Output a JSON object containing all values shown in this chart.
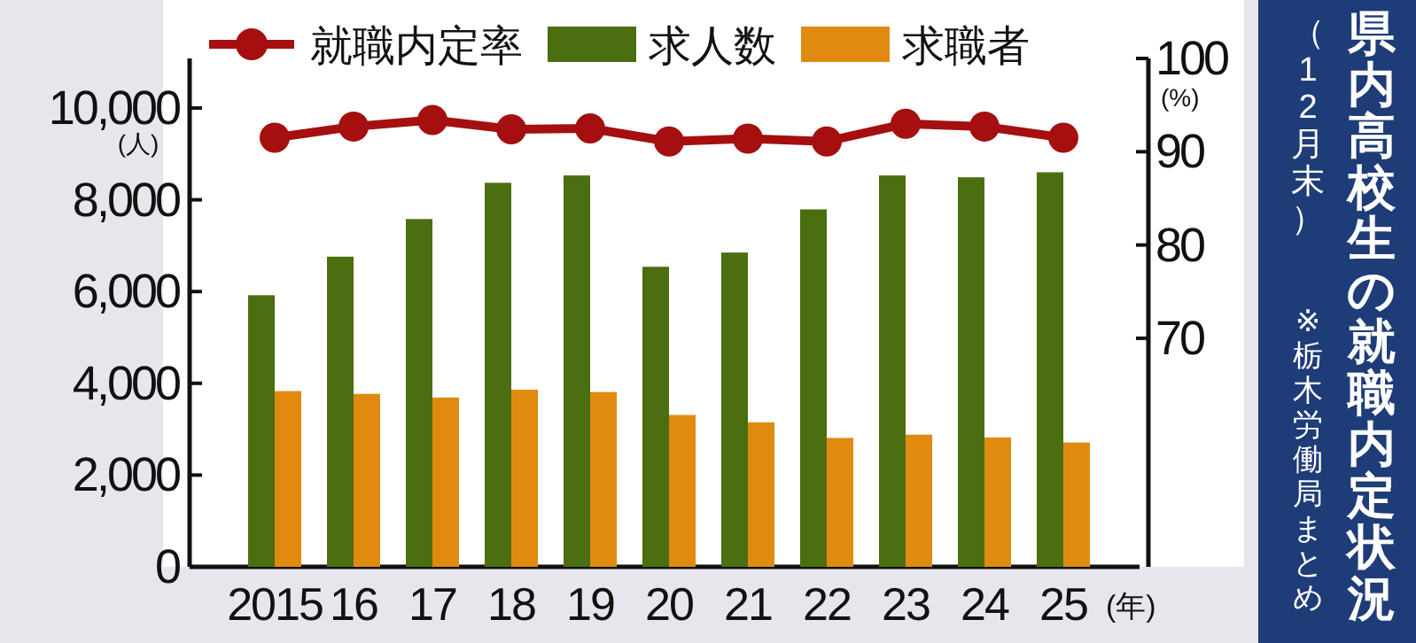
{
  "chart_data": {
    "type": "bar",
    "title": "県内高校生の就職内定状況",
    "subtitle": "（12月末）",
    "annotations": [
      "※栃木労働局まとめ"
    ],
    "xlabel": "(年)",
    "ylabel": "(人)",
    "y2label": "(%)",
    "categories": [
      "2015",
      "16",
      "17",
      "18",
      "19",
      "20",
      "21",
      "22",
      "23",
      "24",
      "25"
    ],
    "ylim": [
      0,
      11080
    ],
    "yticks": [
      0,
      {
        "value": 2000,
        "label": "2,000"
      },
      {
        "value": 4000,
        "label": "4,000"
      },
      {
        "value": 6000,
        "label": "6,000"
      },
      {
        "value": 8000,
        "label": "8,000"
      },
      {
        "value": 10000,
        "label": "10,000"
      }
    ],
    "y2lim": [
      45.5,
      100
    ],
    "y2ticks": [
      70,
      80,
      90,
      100
    ],
    "legend": "top",
    "marker": "circle",
    "series": [
      {
        "name": "就職内定率",
        "type": "line",
        "axis": "y2",
        "color": "#a50f0f",
        "values": [
          91.5,
          92.7,
          93.4,
          92.4,
          92.5,
          91.1,
          91.4,
          91.1,
          93.0,
          92.7,
          91.5
        ]
      },
      {
        "name": "求人数",
        "color": "#4a6e10",
        "values": [
          5920,
          6760,
          7580,
          8370,
          8530,
          6540,
          6850,
          7790,
          8530,
          8490,
          8600
        ]
      },
      {
        "name": "求職者",
        "color": "#e08a10",
        "values": [
          3830,
          3770,
          3690,
          3860,
          3810,
          3310,
          3150,
          2810,
          2880,
          2820,
          2710
        ]
      }
    ]
  }
}
